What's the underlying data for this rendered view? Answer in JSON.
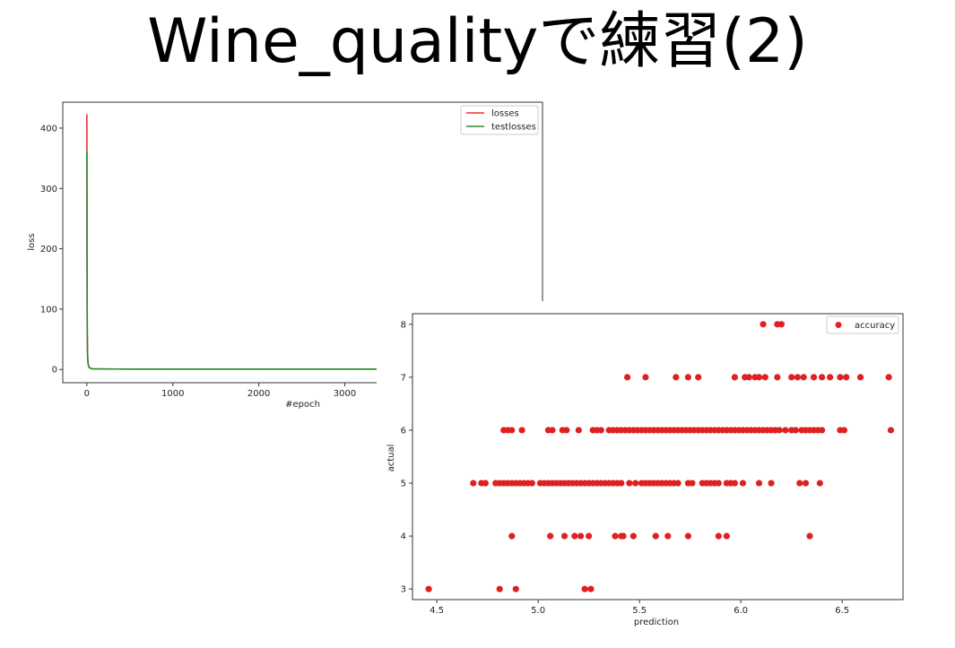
{
  "slide": {
    "title": "Wine_qualityで練習(2)"
  },
  "chart_data": [
    {
      "type": "line",
      "xlabel": "#epoch",
      "ylabel": "loss",
      "xlim": [
        -280,
        5300
      ],
      "ylim": [
        -22,
        443
      ],
      "xticks": [
        0,
        1000,
        2000,
        3000
      ],
      "yticks": [
        0,
        100,
        200,
        300,
        400
      ],
      "legend_position": "top-right",
      "series": [
        {
          "name": "losses",
          "color": "#e8332a",
          "x": [
            0,
            1,
            2,
            3,
            4,
            5,
            7,
            10,
            15,
            20,
            30,
            50,
            80,
            120,
            200,
            500,
            1000,
            2000,
            3000,
            4000,
            5000
          ],
          "y": [
            423,
            360,
            260,
            160,
            95,
            60,
            35,
            20,
            10,
            6,
            3,
            1.5,
            1,
            0.8,
            0.7,
            0.6,
            0.6,
            0.55,
            0.55,
            0.55,
            0.55
          ]
        },
        {
          "name": "testlosses",
          "color": "#2e8b2e",
          "x": [
            0,
            1,
            2,
            3,
            4,
            5,
            7,
            10,
            15,
            20,
            30,
            50,
            80,
            120,
            200,
            500,
            1000,
            2000,
            3000,
            4000,
            5000
          ],
          "y": [
            360,
            300,
            220,
            140,
            85,
            55,
            32,
            18,
            9,
            5,
            3,
            1.5,
            1,
            0.8,
            0.7,
            0.6,
            0.6,
            0.6,
            0.6,
            0.6,
            0.6
          ]
        }
      ]
    },
    {
      "type": "scatter",
      "xlabel": "prediction",
      "ylabel": "actual",
      "xlim": [
        4.38,
        6.8
      ],
      "ylim": [
        2.8,
        8.2
      ],
      "xticks": [
        4.5,
        5.0,
        5.5,
        6.0,
        6.5
      ],
      "xtick_labels": [
        "4.5",
        "5.0",
        "5.5",
        "6.0",
        "6.5"
      ],
      "yticks": [
        3,
        4,
        5,
        6,
        7,
        8
      ],
      "legend_position": "top-right",
      "series": [
        {
          "name": "accuracy",
          "color": "#e02020",
          "points": [
            [
              4.46,
              3
            ],
            [
              4.81,
              3
            ],
            [
              4.89,
              3
            ],
            [
              5.23,
              3
            ],
            [
              5.26,
              3
            ],
            [
              4.87,
              4
            ],
            [
              5.06,
              4
            ],
            [
              5.13,
              4
            ],
            [
              5.18,
              4
            ],
            [
              5.21,
              4
            ],
            [
              5.25,
              4
            ],
            [
              5.38,
              4
            ],
            [
              5.41,
              4
            ],
            [
              5.42,
              4
            ],
            [
              5.47,
              4
            ],
            [
              5.58,
              4
            ],
            [
              5.64,
              4
            ],
            [
              5.74,
              4
            ],
            [
              5.89,
              4
            ],
            [
              5.93,
              4
            ],
            [
              6.34,
              4
            ],
            [
              4.68,
              5
            ],
            [
              4.72,
              5
            ],
            [
              4.74,
              5
            ],
            [
              4.79,
              5
            ],
            [
              4.81,
              5
            ],
            [
              4.83,
              5
            ],
            [
              4.85,
              5
            ],
            [
              4.87,
              5
            ],
            [
              4.89,
              5
            ],
            [
              4.91,
              5
            ],
            [
              4.93,
              5
            ],
            [
              4.95,
              5
            ],
            [
              4.97,
              5
            ],
            [
              5.01,
              5
            ],
            [
              5.03,
              5
            ],
            [
              5.05,
              5
            ],
            [
              5.07,
              5
            ],
            [
              5.09,
              5
            ],
            [
              5.11,
              5
            ],
            [
              5.13,
              5
            ],
            [
              5.15,
              5
            ],
            [
              5.17,
              5
            ],
            [
              5.19,
              5
            ],
            [
              5.21,
              5
            ],
            [
              5.23,
              5
            ],
            [
              5.25,
              5
            ],
            [
              5.27,
              5
            ],
            [
              5.29,
              5
            ],
            [
              5.31,
              5
            ],
            [
              5.33,
              5
            ],
            [
              5.35,
              5
            ],
            [
              5.37,
              5
            ],
            [
              5.39,
              5
            ],
            [
              5.41,
              5
            ],
            [
              5.45,
              5
            ],
            [
              5.48,
              5
            ],
            [
              5.51,
              5
            ],
            [
              5.53,
              5
            ],
            [
              5.55,
              5
            ],
            [
              5.57,
              5
            ],
            [
              5.59,
              5
            ],
            [
              5.61,
              5
            ],
            [
              5.63,
              5
            ],
            [
              5.65,
              5
            ],
            [
              5.67,
              5
            ],
            [
              5.69,
              5
            ],
            [
              5.74,
              5
            ],
            [
              5.76,
              5
            ],
            [
              5.81,
              5
            ],
            [
              5.83,
              5
            ],
            [
              5.85,
              5
            ],
            [
              5.87,
              5
            ],
            [
              5.89,
              5
            ],
            [
              5.93,
              5
            ],
            [
              5.95,
              5
            ],
            [
              5.97,
              5
            ],
            [
              6.01,
              5
            ],
            [
              6.09,
              5
            ],
            [
              6.15,
              5
            ],
            [
              6.29,
              5
            ],
            [
              6.32,
              5
            ],
            [
              6.39,
              5
            ],
            [
              4.83,
              6
            ],
            [
              4.85,
              6
            ],
            [
              4.87,
              6
            ],
            [
              4.92,
              6
            ],
            [
              5.05,
              6
            ],
            [
              5.07,
              6
            ],
            [
              5.12,
              6
            ],
            [
              5.14,
              6
            ],
            [
              5.2,
              6
            ],
            [
              5.27,
              6
            ],
            [
              5.29,
              6
            ],
            [
              5.31,
              6
            ],
            [
              5.35,
              6
            ],
            [
              5.37,
              6
            ],
            [
              5.39,
              6
            ],
            [
              5.41,
              6
            ],
            [
              5.43,
              6
            ],
            [
              5.45,
              6
            ],
            [
              5.47,
              6
            ],
            [
              5.49,
              6
            ],
            [
              5.51,
              6
            ],
            [
              5.53,
              6
            ],
            [
              5.55,
              6
            ],
            [
              5.57,
              6
            ],
            [
              5.59,
              6
            ],
            [
              5.61,
              6
            ],
            [
              5.63,
              6
            ],
            [
              5.65,
              6
            ],
            [
              5.67,
              6
            ],
            [
              5.69,
              6
            ],
            [
              5.71,
              6
            ],
            [
              5.73,
              6
            ],
            [
              5.75,
              6
            ],
            [
              5.77,
              6
            ],
            [
              5.79,
              6
            ],
            [
              5.81,
              6
            ],
            [
              5.83,
              6
            ],
            [
              5.85,
              6
            ],
            [
              5.87,
              6
            ],
            [
              5.89,
              6
            ],
            [
              5.91,
              6
            ],
            [
              5.93,
              6
            ],
            [
              5.95,
              6
            ],
            [
              5.97,
              6
            ],
            [
              5.99,
              6
            ],
            [
              6.01,
              6
            ],
            [
              6.03,
              6
            ],
            [
              6.05,
              6
            ],
            [
              6.07,
              6
            ],
            [
              6.09,
              6
            ],
            [
              6.11,
              6
            ],
            [
              6.13,
              6
            ],
            [
              6.15,
              6
            ],
            [
              6.17,
              6
            ],
            [
              6.19,
              6
            ],
            [
              6.22,
              6
            ],
            [
              6.25,
              6
            ],
            [
              6.27,
              6
            ],
            [
              6.3,
              6
            ],
            [
              6.32,
              6
            ],
            [
              6.34,
              6
            ],
            [
              6.36,
              6
            ],
            [
              6.38,
              6
            ],
            [
              6.4,
              6
            ],
            [
              6.49,
              6
            ],
            [
              6.51,
              6
            ],
            [
              6.74,
              6
            ],
            [
              5.44,
              7
            ],
            [
              5.53,
              7
            ],
            [
              5.68,
              7
            ],
            [
              5.74,
              7
            ],
            [
              5.79,
              7
            ],
            [
              5.97,
              7
            ],
            [
              6.02,
              7
            ],
            [
              6.04,
              7
            ],
            [
              6.07,
              7
            ],
            [
              6.09,
              7
            ],
            [
              6.12,
              7
            ],
            [
              6.18,
              7
            ],
            [
              6.25,
              7
            ],
            [
              6.28,
              7
            ],
            [
              6.31,
              7
            ],
            [
              6.36,
              7
            ],
            [
              6.4,
              7
            ],
            [
              6.44,
              7
            ],
            [
              6.49,
              7
            ],
            [
              6.52,
              7
            ],
            [
              6.59,
              7
            ],
            [
              6.73,
              7
            ],
            [
              6.11,
              8
            ],
            [
              6.18,
              8
            ],
            [
              6.2,
              8
            ]
          ]
        }
      ]
    }
  ]
}
